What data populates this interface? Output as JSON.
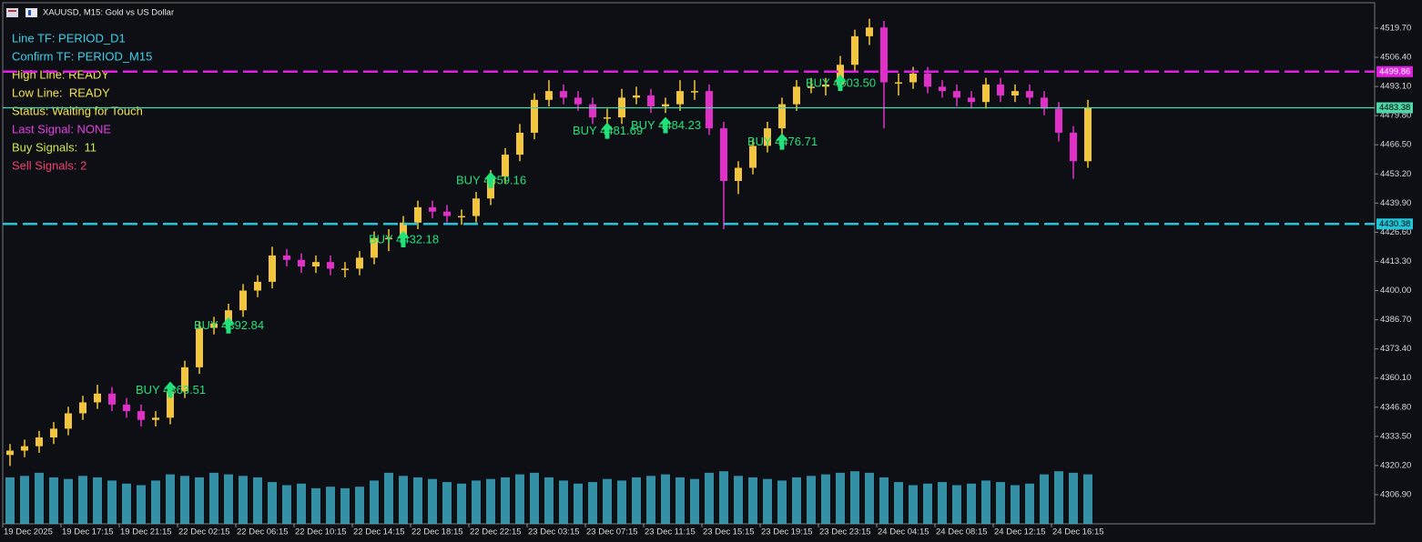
{
  "chart_data": {
    "type": "candlestick",
    "title": "XAUUSD, M15:  Gold vs US Dollar",
    "categories": [
      "19 Dec 2025",
      null,
      null,
      null,
      "19 Dec 17:15",
      null,
      null,
      null,
      "19 Dec 21:15",
      null,
      null,
      null,
      "22 Dec 02:15",
      null,
      null,
      null,
      "22 Dec 06:15",
      null,
      null,
      null,
      "22 Dec 10:15",
      null,
      null,
      null,
      "22 Dec 14:15",
      null,
      null,
      null,
      "22 Dec 18:15",
      null,
      null,
      null,
      "22 Dec 22:15",
      null,
      null,
      null,
      "23 Dec 03:15",
      null,
      null,
      null,
      "23 Dec 07:15",
      null,
      null,
      null,
      "23 Dec 11:15",
      null,
      null,
      null,
      "23 Dec 15:15",
      null,
      null,
      null,
      "23 Dec 19:15",
      null,
      null,
      null,
      "23 Dec 23:15",
      null,
      null,
      null,
      "24 Dec 04:15",
      null,
      null,
      null,
      "24 Dec 08:15",
      null,
      null,
      null,
      "24 Dec 12:15",
      null,
      null,
      null,
      "24 Dec 16:15",
      null,
      null
    ],
    "open": [
      4325,
      4327,
      4329,
      4333,
      4337,
      4344,
      4349,
      4353,
      4348,
      4345,
      4341,
      4342,
      4354,
      4365,
      4383,
      4385,
      4391,
      4400,
      4404,
      4416,
      4414,
      4411,
      4413,
      4410,
      4410,
      4415,
      4424,
      4424,
      4431,
      4438,
      4436,
      4434,
      4434,
      4442,
      4452,
      4462,
      4472,
      4487,
      4491,
      4488,
      4485,
      4479,
      4479,
      4488,
      4489,
      4484,
      4485,
      4491,
      4491,
      4474,
      4450,
      4456,
      4466,
      4474,
      4485,
      4493,
      4493,
      4494,
      4503,
      4516,
      4520,
      4495,
      4495,
      4499,
      4493,
      4491,
      4488,
      4486,
      4494,
      4489,
      4491,
      4488,
      4483,
      4472,
      4459
    ],
    "high": [
      4330,
      4332,
      4336,
      4340,
      4347,
      4352,
      4357,
      4356,
      4351,
      4348,
      4345,
      4357,
      4368,
      4386,
      4388,
      4394,
      4403,
      4407,
      4420,
      4419,
      4417,
      4416,
      4416,
      4413,
      4418,
      4427,
      4428,
      4434,
      4441,
      4441,
      4439,
      4437,
      4445,
      4455,
      4465,
      4476,
      4490,
      4496,
      4494,
      4491,
      4488,
      4483,
      4492,
      4493,
      4492,
      4488,
      4496,
      4496,
      4494,
      4477,
      4459,
      4469,
      4477,
      4488,
      4496,
      4497,
      4497,
      4507,
      4519,
      4524,
      4523,
      4499,
      4502,
      4502,
      4496,
      4494,
      4491,
      4497,
      4497,
      4494,
      4494,
      4491,
      4486,
      4475,
      4487
    ],
    "low": [
      4320,
      4324,
      4326,
      4330,
      4334,
      4341,
      4346,
      4345,
      4342,
      4338,
      4338,
      4339,
      4351,
      4362,
      4380,
      4382,
      4388,
      4397,
      4401,
      4411,
      4408,
      4408,
      4407,
      4406,
      4407,
      4412,
      4418,
      4421,
      4428,
      4433,
      4431,
      4430,
      4431,
      4439,
      4449,
      4459,
      4469,
      4484,
      4485,
      4482,
      4476,
      4475,
      4476,
      4485,
      4481,
      4481,
      4482,
      4487,
      4471,
      4428,
      4444,
      4453,
      4463,
      4471,
      4482,
      4490,
      4489,
      4491,
      4500,
      4512,
      4474,
      4489,
      4492,
      4490,
      4488,
      4484,
      4483,
      4483,
      4486,
      4486,
      4485,
      4480,
      4468,
      4451,
      4456
    ],
    "close": [
      4327,
      4329,
      4333,
      4337,
      4344,
      4349,
      4353,
      4348,
      4345,
      4341,
      4342,
      4354,
      4365,
      4383,
      4385,
      4391,
      4400,
      4404,
      4416,
      4414,
      4411,
      4413,
      4410,
      4410,
      4415,
      4424,
      4424,
      4431,
      4438,
      4436,
      4434,
      4434,
      4442,
      4452,
      4462,
      4472,
      4487,
      4491,
      4488,
      4485,
      4479,
      4479,
      4488,
      4489,
      4484,
      4485,
      4491,
      4491,
      4474,
      4450,
      4456,
      4466,
      4474,
      4485,
      4493,
      4493,
      4494,
      4503,
      4516,
      4520,
      4495,
      4495,
      4499,
      4493,
      4491,
      4488,
      4486,
      4494,
      4489,
      4491,
      4488,
      4483,
      4472,
      4459,
      4483.38
    ],
    "volumes": [
      3000,
      3100,
      3300,
      3000,
      2900,
      3100,
      3000,
      2800,
      2600,
      2500,
      2800,
      3200,
      3100,
      3000,
      3300,
      3200,
      3100,
      3000,
      2700,
      2500,
      2600,
      2300,
      2400,
      2300,
      2400,
      2800,
      3300,
      3100,
      3000,
      2900,
      2700,
      2600,
      2800,
      2900,
      3000,
      3200,
      3300,
      3000,
      2800,
      2600,
      2700,
      2900,
      2800,
      3000,
      3100,
      3200,
      3000,
      2900,
      3300,
      3400,
      3100,
      3000,
      2900,
      2800,
      3000,
      3100,
      3200,
      3300,
      3400,
      3300,
      3000,
      2700,
      2500,
      2600,
      2700,
      2500,
      2600,
      2800,
      2700,
      2500,
      2600,
      3200,
      3400,
      3300,
      3200
    ],
    "up_color": "#f2c53d",
    "down_color": "#e030c8",
    "volume_color": "#3fb0c8",
    "ylim": [
      4293.6,
      4531.3
    ],
    "yticks": [
      {
        "value": 4519.7,
        "label": "4519.70"
      },
      {
        "value": 4506.4,
        "label": "4506.40"
      },
      {
        "value": 4493.1,
        "label": "4493.10"
      },
      {
        "value": 4479.8,
        "label": "4479.80"
      },
      {
        "value": 4466.5,
        "label": "4466.50"
      },
      {
        "value": 4453.2,
        "label": "4453.20"
      },
      {
        "value": 4439.9,
        "label": "4439.90"
      },
      {
        "value": 4426.6,
        "label": "4426.60"
      },
      {
        "value": 4413.3,
        "label": "4413.30"
      },
      {
        "value": 4400,
        "label": "4400.00"
      },
      {
        "value": 4386.7,
        "label": "4386.70"
      },
      {
        "value": 4373.4,
        "label": "4373.40"
      },
      {
        "value": 4360.1,
        "label": "4360.10"
      },
      {
        "value": 4346.8,
        "label": "4346.80"
      },
      {
        "value": 4333.5,
        "label": "4333.50"
      },
      {
        "value": 4320.2,
        "label": "4320.20"
      },
      {
        "value": 4306.9,
        "label": "4306.90"
      }
    ],
    "levels": [
      {
        "value": 4499.86,
        "label": "4499.86",
        "color": "#e020e0",
        "text_color": "#ffffff",
        "dashed": true
      },
      {
        "value": 4430.38,
        "label": "4430.38",
        "color": "#22c4d8",
        "text_color": "#000000",
        "dashed": true
      },
      {
        "value": 4483.38,
        "label": "4483.38",
        "color": "#4fd6a8",
        "text_color": "#000000",
        "dashed": false
      }
    ],
    "signal_color": "#22e07a",
    "signals": [
      {
        "x": 11,
        "value": 4363.51,
        "label": "BUY 4363.51"
      },
      {
        "x": 15,
        "value": 4392.84,
        "label": "BUY 4392.84"
      },
      {
        "x": 27,
        "value": 4432.18,
        "label": "BUY 4432.18"
      },
      {
        "x": 33,
        "value": 4459.16,
        "label": "BUY 4459.16"
      },
      {
        "x": 41,
        "value": 4481.69,
        "label": "BUY 4481.69"
      },
      {
        "x": 45,
        "value": 4484.23,
        "label": "BUY 4484.23"
      },
      {
        "x": 53,
        "value": 4476.71,
        "label": "BUY 4476.71"
      },
      {
        "x": 57,
        "value": 4503.5,
        "label": "BUY 4503.50"
      }
    ]
  },
  "panel": {
    "lines": [
      {
        "text": "Line TF: PERIOD_D1",
        "color": "#3cd0e8"
      },
      {
        "text": "Confirm TF: PERIOD_M15",
        "color": "#3cd0e8"
      },
      {
        "text": "High Line: READY",
        "color": "#f2e24a"
      },
      {
        "text": "Low Line:  READY",
        "color": "#f2e24a"
      },
      {
        "text": "Status: Waiting for Touch",
        "color": "#f2e24a"
      },
      {
        "text": "Last Signal: NONE",
        "color": "#e040e0"
      },
      {
        "text": "Buy Signals:  11",
        "color": "#c8e84a"
      },
      {
        "text": "Sell Signals: 2",
        "color": "#f04070"
      }
    ]
  }
}
